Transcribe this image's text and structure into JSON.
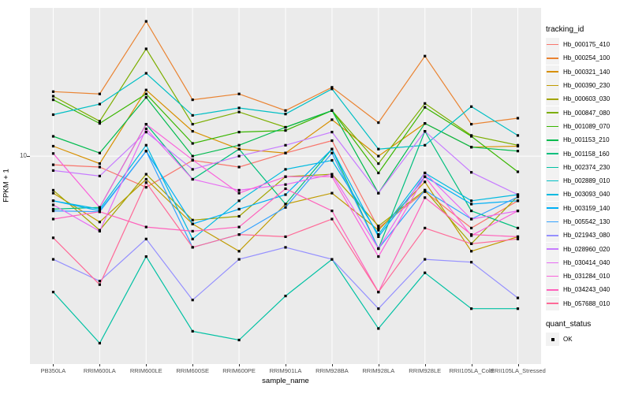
{
  "chart_data": {
    "type": "line",
    "xlabel": "sample_name",
    "ylabel": "FPKM + 1",
    "y_scale": "log10",
    "y_ticks": [
      10
    ],
    "y_tick_labels": [
      "10"
    ],
    "ylim_log10": [
      0.13,
      1.62
    ],
    "panel_bg": "#EBEBEB",
    "grid_color": "#FFFFFF",
    "point_color": "#000000",
    "point_shape": "square",
    "legend_title": "tracking_id",
    "legend2_title": "quant_status",
    "legend2_items": [
      "OK"
    ],
    "categories": [
      "PB350LA",
      "RRIM600LA",
      "RRIM600LE",
      "RRIM600SE",
      "RRIM600PE",
      "RRIM901LA",
      "RRIM928BA",
      "RRIM928LA",
      "RRIM928LE",
      "RRII105LA_Cold",
      "RRII105LA_Stressed"
    ],
    "series": [
      {
        "name": "Hb_000175_410",
        "color": "#F8766D",
        "values": [
          9.2,
          9.0,
          7.4,
          9.6,
          9.0,
          10.3,
          11.6,
          5.0,
          7.1,
          5.0,
          6.5
        ]
      },
      {
        "name": "Hb_000254_100",
        "color": "#EA8331",
        "values": [
          18.6,
          18.2,
          36.6,
          17.2,
          18.2,
          15.5,
          19.4,
          13.8,
          26.2,
          13.6,
          14.4
        ]
      },
      {
        "name": "Hb_000321_140",
        "color": "#D89000",
        "values": [
          11.0,
          9.3,
          18.9,
          12.7,
          10.7,
          10.3,
          14.2,
          10.0,
          13.7,
          10.9,
          11.0
        ]
      },
      {
        "name": "Hb_000390_230",
        "color": "#C09B00",
        "values": [
          7.0,
          5.3,
          8.0,
          5.2,
          4.0,
          6.3,
          7.0,
          4.9,
          7.8,
          4.0,
          4.6
        ]
      },
      {
        "name": "Hb_000603_030",
        "color": "#A3A500",
        "values": [
          7.2,
          4.9,
          8.4,
          5.4,
          5.6,
          8.2,
          8.4,
          5.1,
          7.2,
          4.3,
          6.8
        ]
      },
      {
        "name": "Hb_000847_080",
        "color": "#7CAE00",
        "values": [
          17.8,
          14.0,
          28.1,
          13.6,
          15.3,
          13.2,
          15.5,
          9.3,
          16.6,
          12.2,
          11.1
        ]
      },
      {
        "name": "Hb_001089_070",
        "color": "#39B600",
        "values": [
          17.2,
          13.7,
          18.2,
          11.3,
          12.6,
          12.8,
          15.5,
          8.5,
          16.0,
          12.1,
          8.6
        ]
      },
      {
        "name": "Hb_001153_210",
        "color": "#00BB4E",
        "values": [
          12.1,
          10.3,
          17.6,
          10.0,
          11.1,
          13.2,
          15.5,
          7.0,
          13.7,
          10.9,
          10.5
        ]
      },
      {
        "name": "Hb_001158_160",
        "color": "#00BF7D",
        "values": [
          6.0,
          6.1,
          13.6,
          8.0,
          10.7,
          6.3,
          10.7,
          4.1,
          12.7,
          5.9,
          5.0
        ]
      },
      {
        "name": "Hb_002374_230",
        "color": "#00C1A3",
        "values": [
          2.7,
          1.65,
          3.8,
          1.85,
          1.7,
          2.6,
          3.7,
          1.9,
          3.25,
          2.3,
          2.3
        ]
      },
      {
        "name": "Hb_002889_010",
        "color": "#00BFC4",
        "values": [
          14.9,
          16.5,
          22.2,
          14.8,
          15.9,
          15.0,
          19.1,
          10.7,
          11.1,
          16.1,
          12.2
        ]
      },
      {
        "name": "Hb_003093_040",
        "color": "#00BAE0",
        "values": [
          6.5,
          6.0,
          11.1,
          4.5,
          6.5,
          8.8,
          9.6,
          4.7,
          8.5,
          6.5,
          6.9
        ]
      },
      {
        "name": "Hb_003159_140",
        "color": "#00B0F6",
        "values": [
          6.5,
          5.9,
          10.5,
          5.2,
          6.0,
          6.9,
          10.7,
          4.6,
          8.2,
          6.3,
          6.5
        ]
      },
      {
        "name": "Hb_005542_130",
        "color": "#35A2FF",
        "values": [
          5.9,
          5.85,
          10.5,
          4.15,
          4.7,
          6.1,
          10.3,
          4.1,
          7.2,
          5.45,
          6.75
        ]
      },
      {
        "name": "Hb_021943_080",
        "color": "#9590FF",
        "values": [
          3.7,
          3.0,
          4.5,
          2.5,
          3.7,
          4.15,
          3.7,
          2.3,
          3.7,
          3.6,
          2.55
        ]
      },
      {
        "name": "Hb_028960_020",
        "color": "#C77CFF",
        "values": [
          8.7,
          8.25,
          12.6,
          8.8,
          10.0,
          11.1,
          12.6,
          7.0,
          12.7,
          8.55,
          6.9
        ]
      },
      {
        "name": "Hb_030414_040",
        "color": "#E76BF3",
        "values": [
          6.25,
          4.85,
          13.0,
          8.0,
          7.2,
          7.6,
          8.4,
          4.1,
          8.5,
          5.45,
          5.9
        ]
      },
      {
        "name": "Hb_031284_010",
        "color": "#FA62DB",
        "values": [
          10.25,
          6.1,
          13.6,
          9.65,
          7.0,
          8.2,
          8.2,
          3.8,
          8.2,
          4.65,
          5.9
        ]
      },
      {
        "name": "Hb_034243_040",
        "color": "#FF62BC",
        "values": [
          5.45,
          5.85,
          5.05,
          4.85,
          5.05,
          7.3,
          5.9,
          2.7,
          6.7,
          4.7,
          4.6
        ]
      },
      {
        "name": "Hb_057688_010",
        "color": "#FF6A98",
        "values": [
          4.55,
          2.9,
          7.75,
          4.15,
          4.7,
          4.6,
          5.45,
          2.7,
          5.0,
          4.3,
          4.5
        ]
      }
    ]
  }
}
